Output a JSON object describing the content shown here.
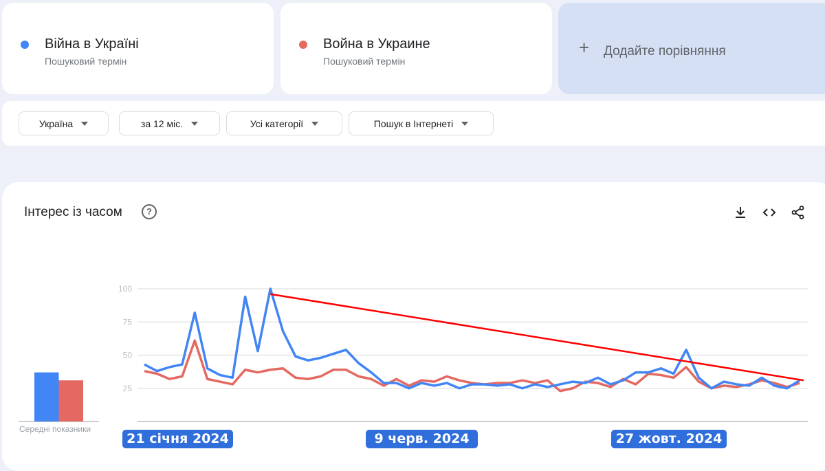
{
  "terms": [
    {
      "name": "Війна в Україні",
      "subtitle": "Пошуковий термін",
      "color": "#4285f4"
    },
    {
      "name": "Война в Украине",
      "subtitle": "Пошуковий термін",
      "color": "#e46962"
    }
  ],
  "add_comparison": {
    "icon": "plus-icon",
    "label": "Додайте порівняння"
  },
  "filters": [
    {
      "label": "Україна"
    },
    {
      "label": "за 12 міс."
    },
    {
      "label": "Усі категорії"
    },
    {
      "label": "Пошук в Інтернеті"
    }
  ],
  "panel": {
    "title": "Інтерес із часом",
    "help": "?",
    "actions": [
      "download-icon",
      "embed-icon",
      "share-icon"
    ]
  },
  "averages_label": "Середні показники",
  "date_badges": [
    "21 січня 2024",
    "9 черв. 2024",
    "27 жовт. 2024"
  ],
  "chart_data": {
    "type": "line",
    "ylim": [
      0,
      100
    ],
    "yticks": [
      "100",
      "75",
      "50",
      "25"
    ],
    "grid": true,
    "series": [
      {
        "name": "Війна в Україні",
        "color": "#4285f4",
        "values": [
          43,
          38,
          41,
          43,
          82,
          40,
          35,
          33,
          94,
          53,
          100,
          68,
          49,
          46,
          48,
          51,
          54,
          44,
          37,
          29,
          29,
          25,
          29,
          27,
          29,
          25,
          28,
          28,
          27,
          28,
          25,
          28,
          26,
          28,
          30,
          29,
          33,
          28,
          31,
          37,
          37,
          40,
          36,
          54,
          33,
          25,
          30,
          28,
          27,
          33,
          27,
          25,
          31
        ]
      },
      {
        "name": "Война в Украине",
        "color": "#e46962",
        "values": [
          38,
          36,
          32,
          34,
          61,
          32,
          30,
          28,
          39,
          37,
          39,
          40,
          33,
          32,
          34,
          39,
          39,
          34,
          32,
          27,
          32,
          27,
          31,
          30,
          34,
          31,
          29,
          28,
          29,
          29,
          31,
          29,
          31,
          23,
          25,
          30,
          29,
          26,
          32,
          28,
          36,
          35,
          33,
          41,
          30,
          25,
          27,
          26,
          28,
          31,
          29,
          26,
          29
        ]
      }
    ],
    "averages": [
      37,
      31
    ],
    "trend_annotation": {
      "color": "#ff0000",
      "from_index": 10,
      "from_value": 96,
      "to_index": 52,
      "to_value": 31
    }
  }
}
